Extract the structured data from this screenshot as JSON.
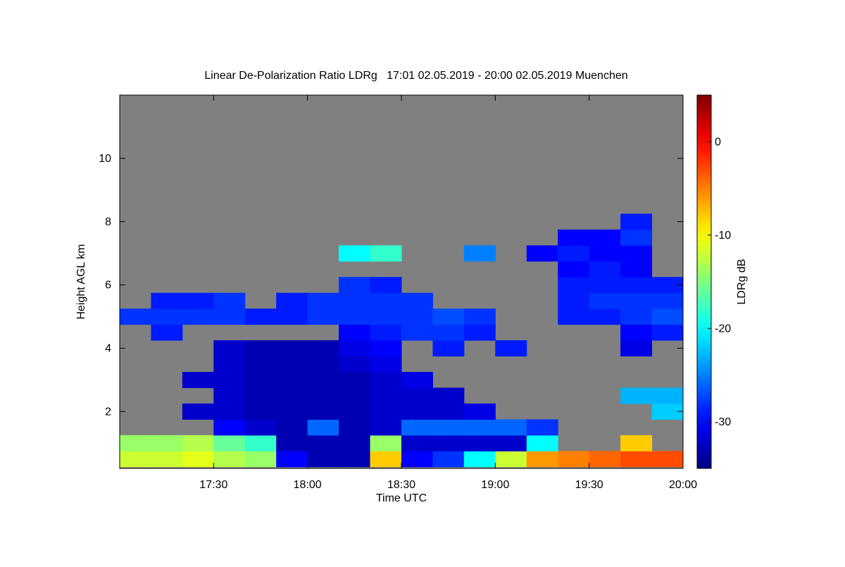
{
  "chart_data": {
    "type": "heatmap",
    "title": "Linear De-Polarization Ratio LDRg   17:01 02.05.2019 - 20:00 02.05.2019 Muenchen",
    "x_label": "Time UTC",
    "y_label": "Height AGL km",
    "colorbar_label": "LDRg dB",
    "colormap": "jet",
    "background": "#808080",
    "xlim": [
      1020,
      1200
    ],
    "xticks": [
      {
        "value": 1050,
        "label": "17:30"
      },
      {
        "value": 1080,
        "label": "18:00"
      },
      {
        "value": 1110,
        "label": "18:30"
      },
      {
        "value": 1140,
        "label": "19:00"
      },
      {
        "value": 1170,
        "label": "19:30"
      },
      {
        "value": 1200,
        "label": "20:00"
      }
    ],
    "ylim": [
      0.2,
      12
    ],
    "yticks": [
      2,
      4,
      6,
      8,
      10
    ],
    "clim": [
      -35,
      5
    ],
    "cticks": [
      -30,
      -20,
      -10,
      0
    ],
    "x": [
      1025,
      1035,
      1045,
      1055,
      1065,
      1075,
      1085,
      1095,
      1105,
      1115,
      1125,
      1135,
      1145,
      1155,
      1165,
      1175,
      1185,
      1195
    ],
    "y": [
      0.5,
      1.0,
      1.5,
      2.0,
      2.5,
      3.0,
      3.5,
      4.0,
      4.5,
      5.0,
      5.5,
      6.0,
      6.5,
      7.0,
      7.5,
      8.0
    ],
    "z": [
      [
        -12,
        -12,
        -11,
        -13,
        -14,
        -30,
        -33,
        -33,
        -8,
        -30,
        -28,
        -20,
        -12,
        -6,
        -5,
        -4,
        -3,
        -3
      ],
      [
        -14,
        -14,
        -13,
        -16,
        -18,
        -33,
        -33,
        -33,
        -14,
        -32,
        -32,
        -32,
        -32,
        -20,
        null,
        null,
        -8,
        null
      ],
      [
        null,
        null,
        null,
        -30,
        -32,
        -33,
        -26,
        -33,
        -32,
        -26,
        -26,
        -26,
        -26,
        -28,
        null,
        null,
        null,
        null
      ],
      [
        null,
        null,
        -32,
        -32,
        -33,
        -33,
        -33,
        -33,
        -32,
        -32,
        -32,
        -31,
        null,
        null,
        null,
        null,
        null,
        -22
      ],
      [
        null,
        null,
        null,
        -32,
        -33,
        -33,
        -33,
        -33,
        -32,
        -32,
        -32,
        null,
        null,
        null,
        null,
        null,
        -23,
        -23
      ],
      [
        null,
        null,
        -32,
        -32,
        -33,
        -33,
        -33,
        -33,
        -32,
        -31,
        null,
        null,
        null,
        null,
        null,
        null,
        null,
        null
      ],
      [
        null,
        null,
        null,
        -32,
        -33,
        -33,
        -33,
        -32,
        -31,
        null,
        null,
        null,
        null,
        null,
        null,
        null,
        null,
        null
      ],
      [
        null,
        null,
        null,
        -32,
        -33,
        -33,
        -33,
        -31,
        -30,
        null,
        -29,
        null,
        -29,
        null,
        null,
        null,
        -31,
        null
      ],
      [
        null,
        -29,
        null,
        null,
        null,
        null,
        null,
        -30,
        -29,
        -28,
        -28,
        -29,
        null,
        null,
        null,
        null,
        -30,
        -29
      ],
      [
        -28,
        -28,
        -28,
        -28,
        -29,
        -29,
        -28,
        -28,
        -28,
        -28,
        -27,
        -28,
        null,
        null,
        -29,
        -29,
        -28,
        -27
      ],
      [
        null,
        -29,
        -29,
        -28,
        null,
        -29,
        -28,
        -28,
        -28,
        -28,
        null,
        null,
        null,
        null,
        -29,
        -28,
        -28,
        -28
      ],
      [
        null,
        null,
        null,
        null,
        null,
        null,
        null,
        -28,
        -29,
        null,
        null,
        null,
        null,
        null,
        -29,
        -29,
        -29,
        -29
      ],
      [
        null,
        null,
        null,
        null,
        null,
        null,
        null,
        null,
        null,
        null,
        null,
        null,
        null,
        null,
        -30,
        -29,
        -30,
        null
      ],
      [
        null,
        null,
        null,
        null,
        null,
        null,
        null,
        -20,
        -18,
        null,
        null,
        -25,
        null,
        -30,
        -29,
        -30,
        -30,
        null
      ],
      [
        null,
        null,
        null,
        null,
        null,
        null,
        null,
        null,
        null,
        null,
        null,
        null,
        null,
        null,
        -30,
        -30,
        -28,
        null
      ],
      [
        null,
        null,
        null,
        null,
        null,
        null,
        null,
        null,
        null,
        null,
        null,
        null,
        null,
        null,
        null,
        null,
        -29,
        null
      ]
    ]
  }
}
